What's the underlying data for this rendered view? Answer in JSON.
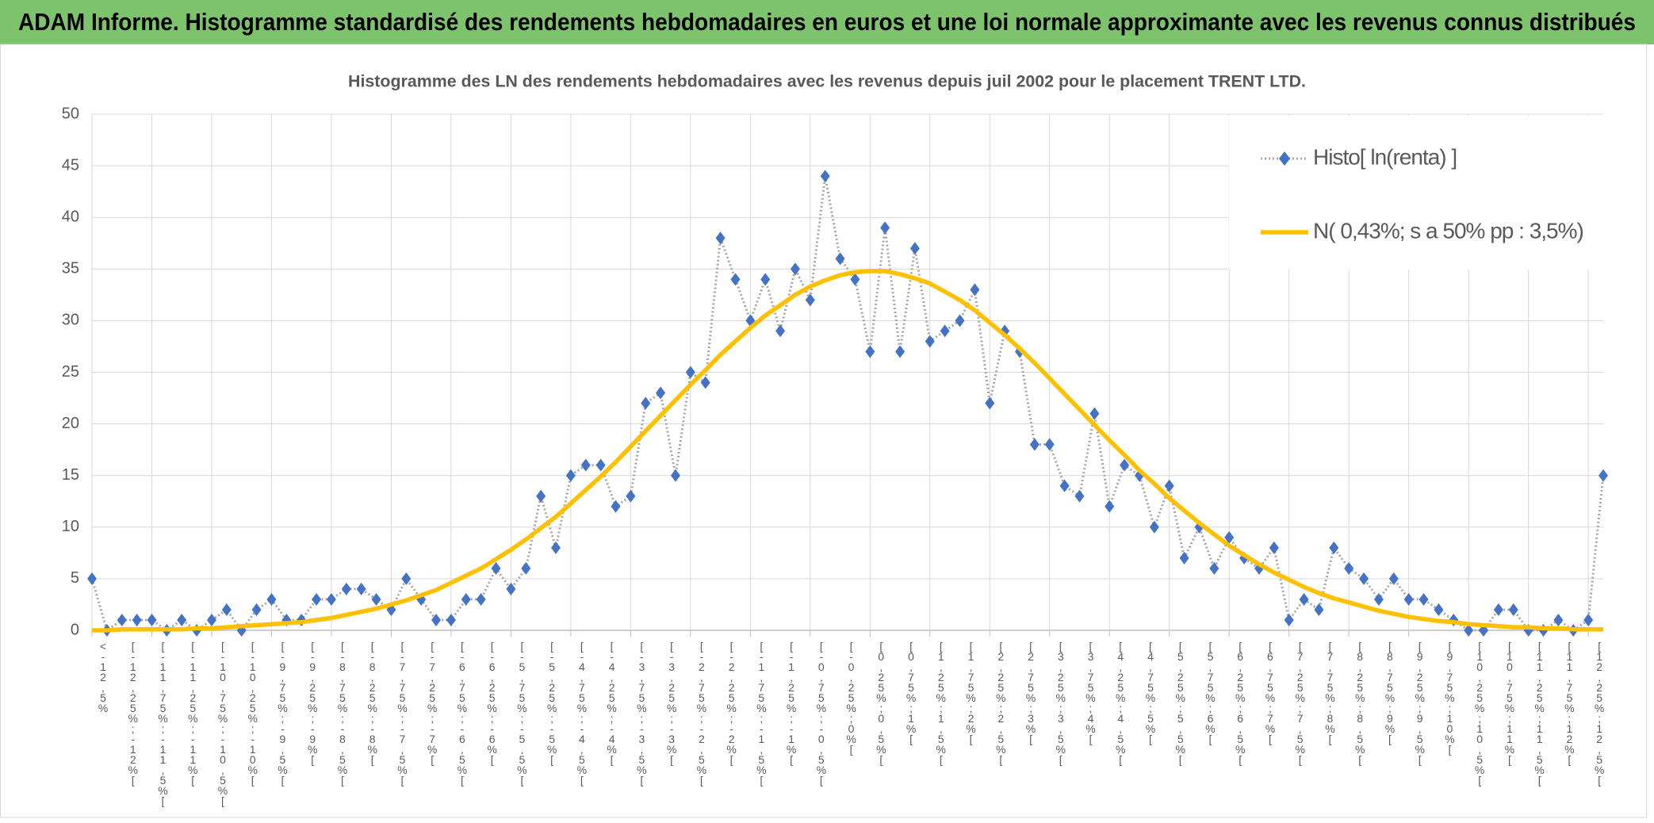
{
  "header": {
    "title": "ADAM Informe. Histogramme standardisé des rendements hebdomadaires en euros et une loi normale approximante avec les revenus connus distribués"
  },
  "chart_data": {
    "type": "line",
    "title": "Histogramme des LN des rendements hebdomadaires avec les revenus depuis juil 2002 pour le placement TRENT LTD.",
    "categories": [
      "<-12,5%",
      null,
      "[-12,25%;-12%[",
      null,
      "[-11,75%;-11,5%[",
      null,
      "[-11,25%;-11%[",
      null,
      "[-10,75%;-10,5%[",
      null,
      "[-10,25%;-10%[",
      null,
      "[-9,75%;-9,5%[",
      null,
      "[-9,25%;-9%[",
      null,
      "[-8,75%;-8,5%[",
      null,
      "[-8,25%;-8%[",
      null,
      "[-7,75%;-7,5%[",
      null,
      "[-7,25%;-7%[",
      null,
      "[-6,75%;-6,5%[",
      null,
      "[-6,25%;-6%[",
      null,
      "[-5,75%;-5,5%[",
      null,
      "[-5,25%;-5%[",
      null,
      "[-4,75%;-4,5%[",
      null,
      "[-4,25%;-4%[",
      null,
      "[-3,75%;-3,5%[",
      null,
      "[-3,25%;-3%[",
      null,
      "[-2,75%;-2,5%[",
      null,
      "[-2,25%;-2%[",
      null,
      "[-1,75%;-1,5%[",
      null,
      "[-1,25%;-1%[",
      null,
      "[-0,75%;-0,5%[",
      null,
      "[-0,25%;0%[",
      null,
      "[0,25%;0,5%[",
      null,
      "[0,75%;1%[",
      null,
      "[1,25%;1,5%[",
      null,
      "[1,75%;2%[",
      null,
      "[2,25%;2,5%[",
      null,
      "[2,75%;3%[",
      null,
      "[3,25%;3,5%[",
      null,
      "[3,75%;4%[",
      null,
      "[4,25%;4,5%[",
      null,
      "[4,75%;5%[",
      null,
      "[5,25%;5,5%[",
      null,
      "[5,75%;6%[",
      null,
      "[6,25%;6,5%[",
      null,
      "[6,75%;7%[",
      null,
      "[7,25%;7,5%[",
      null,
      "[7,75%;8%[",
      null,
      "[8,25%;8,5%[",
      null,
      "[8,75%;9%[",
      null,
      "[9,25%;9,5%[",
      null,
      "[9,75%;10%[",
      null,
      "[10,25%;10,5%[",
      null,
      "[10,75%;11%[",
      null,
      "[11,25%;11,5%[",
      null,
      "[11,75%;12%[",
      null,
      "[12,25%;12,5%[",
      null
    ],
    "series": [
      {
        "name": "Histo[ ln(renta) ]",
        "color": "#4472c4",
        "line_color": "#a6a6a6",
        "marker": "diamond",
        "values": [
          5,
          0,
          1,
          1,
          1,
          0,
          1,
          0,
          1,
          2,
          0,
          2,
          3,
          1,
          1,
          3,
          3,
          4,
          4,
          3,
          2,
          5,
          3,
          1,
          1,
          3,
          3,
          6,
          4,
          6,
          13,
          8,
          15,
          16,
          16,
          12,
          13,
          22,
          23,
          15,
          25,
          24,
          38,
          34,
          30,
          34,
          29,
          35,
          32,
          44,
          36,
          34,
          27,
          39,
          27,
          37,
          28,
          29,
          30,
          33,
          22,
          29,
          27,
          18,
          18,
          14,
          13,
          21,
          12,
          16,
          15,
          10,
          14,
          7,
          10,
          6,
          9,
          7,
          6,
          8,
          1,
          3,
          2,
          8,
          6,
          5,
          3,
          5,
          3,
          3,
          2,
          1,
          0,
          0,
          2,
          2,
          0,
          0,
          1,
          0,
          1,
          15
        ]
      },
      {
        "name": "N( 0,43%; s a 50% pp : 3,5%)",
        "color": "#ffc000",
        "marker": "none",
        "values": [
          0.0,
          0.0,
          0.1,
          0.1,
          0.1,
          0.1,
          0.1,
          0.2,
          0.2,
          0.3,
          0.4,
          0.5,
          0.6,
          0.7,
          0.8,
          1.0,
          1.2,
          1.5,
          1.8,
          2.1,
          2.5,
          2.9,
          3.4,
          3.9,
          4.6,
          5.3,
          6.0,
          6.9,
          7.8,
          8.8,
          9.9,
          11.0,
          12.3,
          13.6,
          14.9,
          16.3,
          17.8,
          19.3,
          20.8,
          22.3,
          23.8,
          25.2,
          26.7,
          28.0,
          29.3,
          30.5,
          31.5,
          32.5,
          33.3,
          33.9,
          34.4,
          34.7,
          34.8,
          34.8,
          34.5,
          34.1,
          33.6,
          32.8,
          32.0,
          31.0,
          29.8,
          28.6,
          27.3,
          25.9,
          24.4,
          22.9,
          21.4,
          19.9,
          18.4,
          17.0,
          15.5,
          14.2,
          12.8,
          11.6,
          10.4,
          9.3,
          8.2,
          7.3,
          6.4,
          5.6,
          4.9,
          4.2,
          3.6,
          3.1,
          2.7,
          2.3,
          1.9,
          1.6,
          1.3,
          1.1,
          0.9,
          0.8,
          0.6,
          0.5,
          0.4,
          0.3,
          0.3,
          0.2,
          0.2,
          0.1,
          0.1,
          0.1
        ]
      }
    ],
    "ylim": [
      0,
      50
    ],
    "yticks": [
      0,
      5,
      10,
      15,
      20,
      25,
      30,
      35,
      40,
      45,
      50
    ],
    "grid": true,
    "legend": "top-right"
  }
}
